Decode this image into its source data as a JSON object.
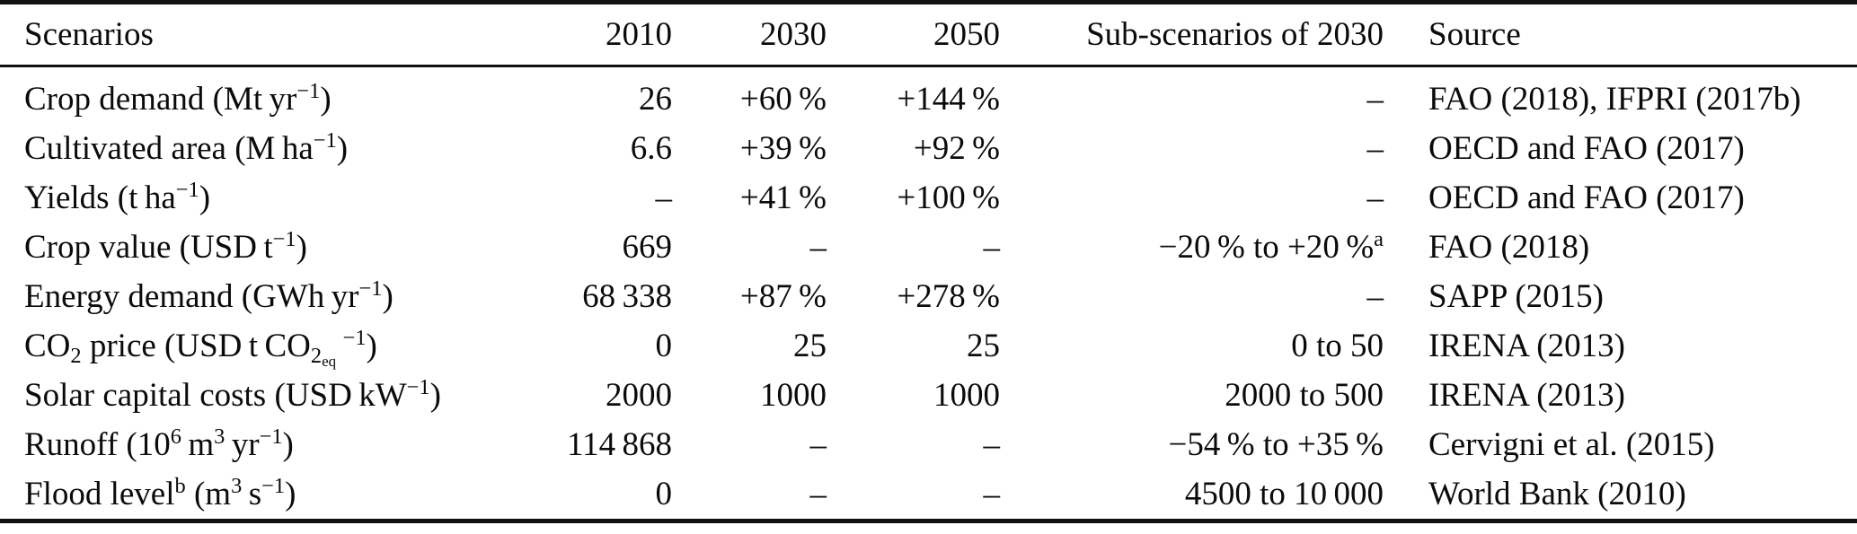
{
  "colors": {
    "background": "#ffffff",
    "text": "#0b0b0b",
    "rule": "#111111"
  },
  "table": {
    "columns": [
      {
        "key": "scenario",
        "label": "Scenarios",
        "align": "left"
      },
      {
        "key": "y2010",
        "label": "2010",
        "align": "right"
      },
      {
        "key": "y2030",
        "label": "2030",
        "align": "right"
      },
      {
        "key": "y2050",
        "label": "2050",
        "align": "right"
      },
      {
        "key": "sub2030",
        "label": "Sub-scenarios of 2030",
        "align": "right"
      },
      {
        "key": "source",
        "label": "Source",
        "align": "left"
      }
    ],
    "rows": [
      {
        "scenario": [
          {
            "t": "Crop demand (Mt yr"
          },
          {
            "t": "−1",
            "s": "sup"
          },
          {
            "t": ")"
          }
        ],
        "y2010": "26",
        "y2030": "+60 %",
        "y2050": "+144 %",
        "sub2030": "–",
        "source": "FAO (2018), IFPRI (2017b)"
      },
      {
        "scenario": [
          {
            "t": "Cultivated area (M ha"
          },
          {
            "t": "−1",
            "s": "sup"
          },
          {
            "t": ")"
          }
        ],
        "y2010": "6.6",
        "y2030": "+39 %",
        "y2050": "+92 %",
        "sub2030": "–",
        "source": "OECD and FAO (2017)"
      },
      {
        "scenario": [
          {
            "t": "Yields (t ha"
          },
          {
            "t": "−1",
            "s": "sup"
          },
          {
            "t": ")"
          }
        ],
        "y2010": "–",
        "y2030": "+41 %",
        "y2050": "+100 %",
        "sub2030": "–",
        "source": "OECD and FAO (2017)"
      },
      {
        "scenario": [
          {
            "t": "Crop value (USD t"
          },
          {
            "t": "−1",
            "s": "sup"
          },
          {
            "t": ")"
          }
        ],
        "y2010": "669",
        "y2030": "–",
        "y2050": "–",
        "sub2030": [
          {
            "t": "−20 % to +20 %"
          },
          {
            "t": "a",
            "s": "sup"
          }
        ],
        "source": "FAO (2018)"
      },
      {
        "scenario": [
          {
            "t": "Energy demand (GWh yr"
          },
          {
            "t": "−1",
            "s": "sup"
          },
          {
            "t": ")"
          }
        ],
        "y2010": "68 338",
        "y2030": "+87 %",
        "y2050": "+278 %",
        "sub2030": "–",
        "source": "SAPP (2015)"
      },
      {
        "scenario": [
          {
            "t": "CO"
          },
          {
            "t": "2",
            "s": "sub"
          },
          {
            "t": " price (USD t CO"
          },
          {
            "t": "2",
            "s": "sub"
          },
          {
            "t": "eq",
            "s": "subsub"
          },
          {
            "t": " "
          },
          {
            "t": "−1",
            "s": "sup"
          },
          {
            "t": ")"
          }
        ],
        "y2010": "0",
        "y2030": "25",
        "y2050": "25",
        "sub2030": "0 to 50",
        "source": "IRENA (2013)"
      },
      {
        "scenario": [
          {
            "t": "Solar capital costs (USD kW"
          },
          {
            "t": "−1",
            "s": "sup"
          },
          {
            "t": ")"
          }
        ],
        "y2010": "2000",
        "y2030": "1000",
        "y2050": "1000",
        "sub2030": "2000 to 500",
        "source": "IRENA (2013)"
      },
      {
        "scenario": [
          {
            "t": "Runoff (10"
          },
          {
            "t": "6",
            "s": "sup"
          },
          {
            "t": " m"
          },
          {
            "t": "3",
            "s": "sup"
          },
          {
            "t": " yr"
          },
          {
            "t": "−1",
            "s": "sup"
          },
          {
            "t": ")"
          }
        ],
        "y2010": "114 868",
        "y2030": "–",
        "y2050": "–",
        "sub2030": "−54 % to +35 %",
        "source": "Cervigni et al. (2015)"
      },
      {
        "scenario": [
          {
            "t": "Flood level"
          },
          {
            "t": "b",
            "s": "sup"
          },
          {
            "t": " (m"
          },
          {
            "t": "3",
            "s": "sup"
          },
          {
            "t": " s"
          },
          {
            "t": "−1",
            "s": "sup"
          },
          {
            "t": ")"
          }
        ],
        "y2010": "0",
        "y2030": "–",
        "y2050": "–",
        "sub2030": "4500 to 10 000",
        "source": "World Bank (2010)"
      }
    ]
  }
}
